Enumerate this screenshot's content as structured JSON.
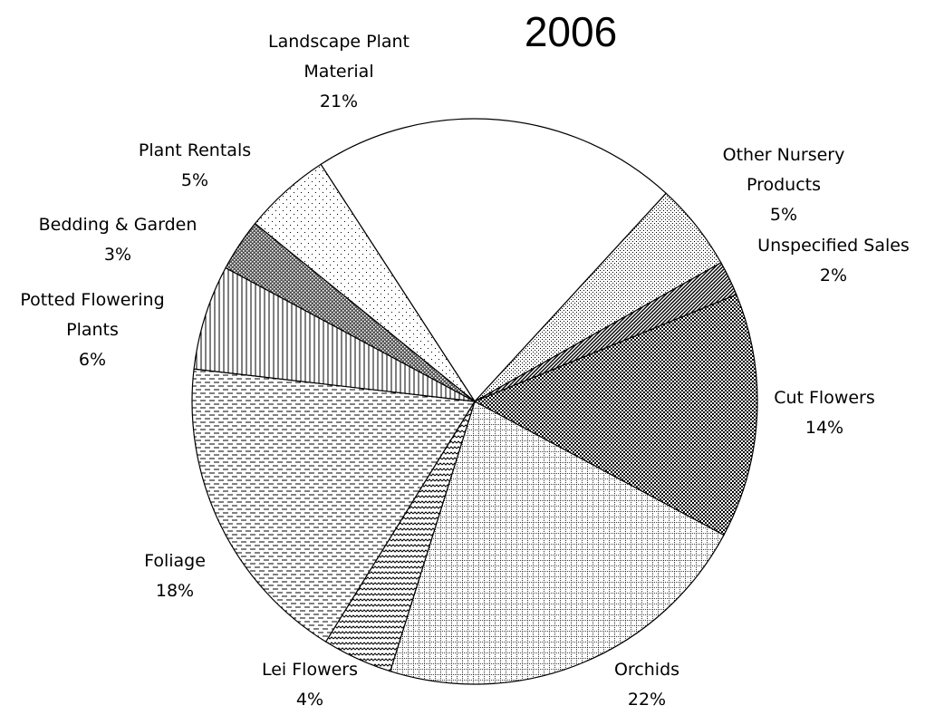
{
  "chart_data": {
    "type": "pie",
    "title": "2006",
    "categories": [
      "Landscape Plant Material",
      "Other Nursery Products",
      "Unspecified Sales",
      "Cut Flowers",
      "Orchids",
      "Lei Flowers",
      "Foliage",
      "Potted Flowering Plants",
      "Bedding & Garden",
      "Plant Rentals"
    ],
    "values": [
      21,
      5,
      2,
      14,
      22,
      4,
      18,
      6,
      3,
      5
    ],
    "value_labels": [
      "21%",
      "5%",
      "2%",
      "14%",
      "22%",
      "4%",
      "18%",
      "6%",
      "3%",
      "5%"
    ]
  }
}
